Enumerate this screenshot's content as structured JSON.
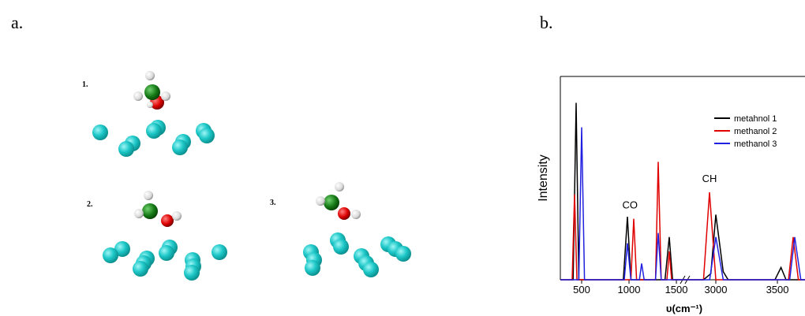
{
  "panel_labels": [
    "a.",
    "b."
  ],
  "structures": [
    "1.",
    "2.",
    "3."
  ],
  "chart_data": {
    "type": "line",
    "ylabel": "Intensity",
    "xlabel": "υ(cm⁻¹)",
    "ylim": [
      0,
      100
    ],
    "x_segments": [
      {
        "xlim": [
          275,
          1608
        ],
        "xticks": [
          500,
          1000,
          1500
        ]
      },
      {
        "xlim": [
          2763,
          3724
        ],
        "xticks": [
          3000,
          3500
        ]
      }
    ],
    "annotations": [
      {
        "text": "CO",
        "x": 1010,
        "y": 35
      },
      {
        "text": "CH",
        "x": 2949,
        "y": 48
      }
    ],
    "series": [
      {
        "name": "metahnol 1",
        "color": "#000000",
        "x": [
          275,
          410,
          442,
          470,
          940,
          983,
          1020,
          1380,
          1425,
          1460,
          2900,
          2960,
          3000,
          3060,
          3100,
          3480,
          3529,
          3570,
          3724
        ],
        "values": [
          0,
          0,
          87,
          0,
          0,
          31,
          0,
          0,
          21,
          0,
          0,
          3,
          32,
          4,
          0,
          0,
          6,
          0,
          0
        ]
      },
      {
        "name": "methanol 2",
        "color": "#e00000",
        "x": [
          275,
          400,
          425,
          450,
          1020,
          1050,
          1080,
          1280,
          1308,
          1340,
          1400,
          1425,
          1450,
          2900,
          2949,
          3000,
          3590,
          3628,
          3670,
          3724
        ],
        "values": [
          0,
          0,
          42,
          0,
          0,
          30,
          0,
          0,
          58,
          0,
          0,
          14,
          0,
          0,
          43,
          0,
          0,
          21,
          0,
          0
        ]
      },
      {
        "name": "methanol 3",
        "color": "#2020e0",
        "x": [
          275,
          470,
          500,
          530,
          950,
          983,
          1020,
          1110,
          1133,
          1160,
          1280,
          1308,
          1340,
          2950,
          3000,
          3060,
          3600,
          3641,
          3690,
          3724
        ],
        "values": [
          0,
          0,
          75,
          0,
          0,
          18,
          0,
          0,
          8,
          0,
          0,
          23,
          0,
          0,
          21,
          0,
          0,
          21,
          0,
          0
        ]
      }
    ]
  }
}
